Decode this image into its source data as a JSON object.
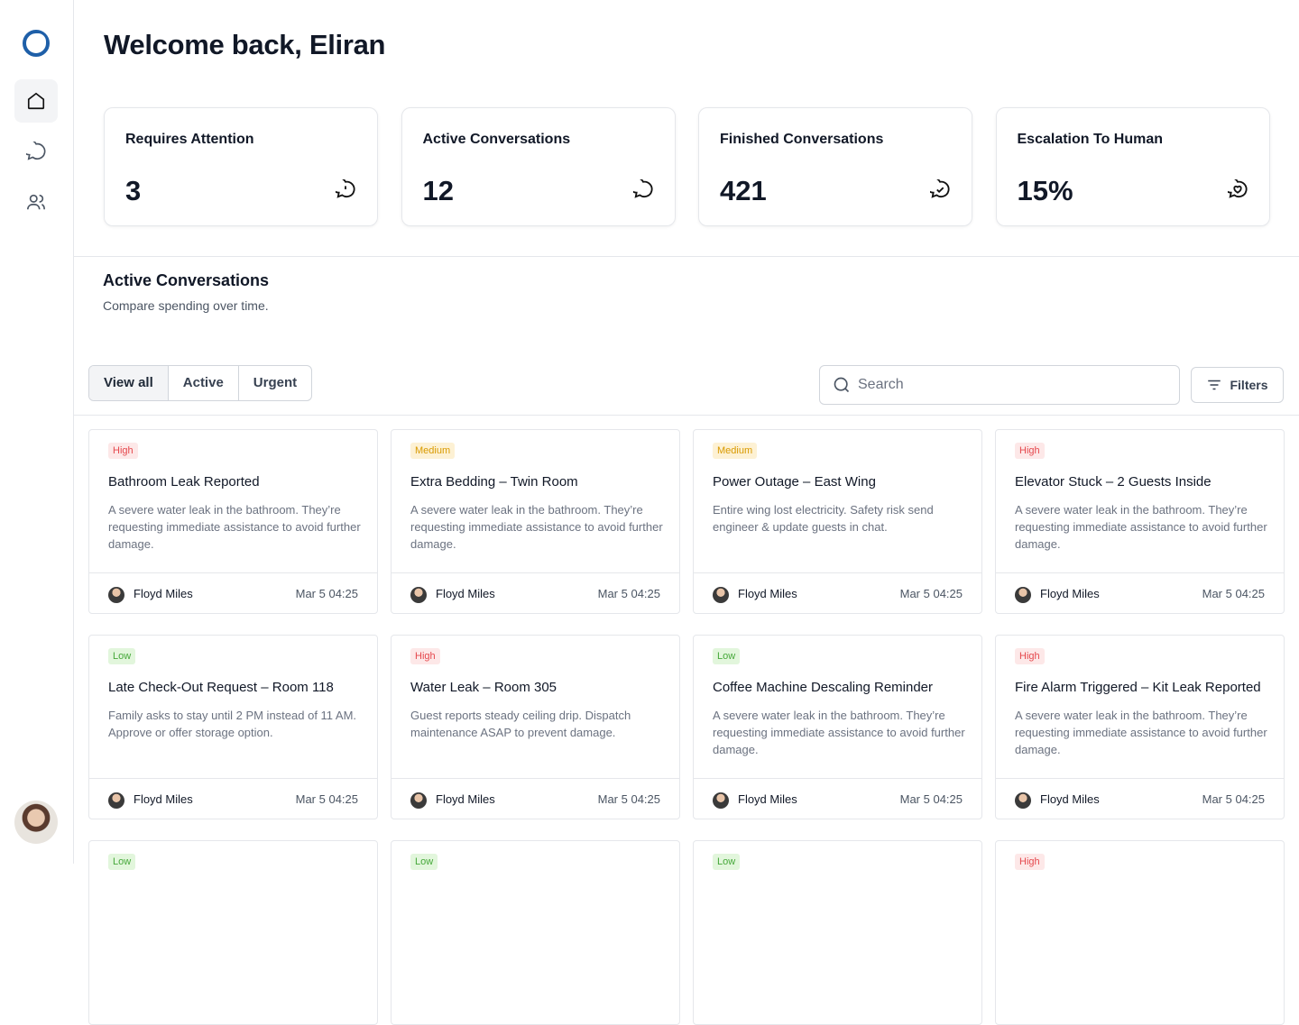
{
  "header": {
    "title": "Welcome back, Eliran"
  },
  "stats": [
    {
      "label": "Requires Attention",
      "value": "3"
    },
    {
      "label": "Active Conversations",
      "value": "12"
    },
    {
      "label": "Finished Conversations",
      "value": "421"
    },
    {
      "label": "Escalation To Human",
      "value": "15%"
    }
  ],
  "section": {
    "title": "Active Conversations",
    "subtitle": "Compare spending over time."
  },
  "tabs": [
    "View all",
    "Active",
    "Urgent"
  ],
  "search": {
    "placeholder": "Search"
  },
  "filters": {
    "label": "Filters"
  },
  "cards": [
    {
      "priority": "High",
      "title": "Bathroom Leak Reported",
      "description": "A severe water leak in the bathroom. They’re requesting immediate assistance to avoid further damage.",
      "author": "Floyd Miles",
      "time": "Mar 5 04:25"
    },
    {
      "priority": "Medium",
      "title": "Extra Bedding – Twin Room",
      "description": "A severe water leak in the bathroom. They’re requesting immediate assistance to avoid further damage.",
      "author": "Floyd Miles",
      "time": "Mar 5 04:25"
    },
    {
      "priority": "Medium",
      "title": "Power Outage – East Wing",
      "description": "Entire wing lost electricity. Safety risk send engineer & update guests in chat.",
      "author": "Floyd Miles",
      "time": "Mar 5 04:25"
    },
    {
      "priority": "High",
      "title": "Elevator Stuck – 2 Guests Inside",
      "description": "A severe water leak in the bathroom. They’re requesting immediate assistance to avoid further damage.",
      "author": "Floyd Miles",
      "time": "Mar 5 04:25"
    },
    {
      "priority": "Low",
      "title": "Late Check-Out Request – Room 118",
      "description": "Family asks to stay until 2 PM instead of 11 AM. Approve or offer storage option.",
      "author": "Floyd Miles",
      "time": "Mar 5 04:25"
    },
    {
      "priority": "High",
      "title": "Water Leak – Room 305",
      "description": "Guest reports steady ceiling drip. Dispatch maintenance ASAP to prevent damage.",
      "author": "Floyd Miles",
      "time": "Mar 5 04:25"
    },
    {
      "priority": "Low",
      "title": "Coffee Machine Descaling Reminder",
      "description": "A severe water leak in the bathroom. They’re requesting immediate assistance to avoid further damage.",
      "author": "Floyd Miles",
      "time": "Mar 5 04:25"
    },
    {
      "priority": "High",
      "title": "Fire Alarm Triggered – Kit Leak Reported",
      "description": "A severe water leak in the bathroom. They’re requesting immediate assistance to avoid further damage.",
      "author": "Floyd Miles",
      "time": "Mar 5 04:25"
    },
    {
      "priority": "Low"
    },
    {
      "priority": "Low"
    },
    {
      "priority": "Low"
    },
    {
      "priority": "High"
    }
  ]
}
